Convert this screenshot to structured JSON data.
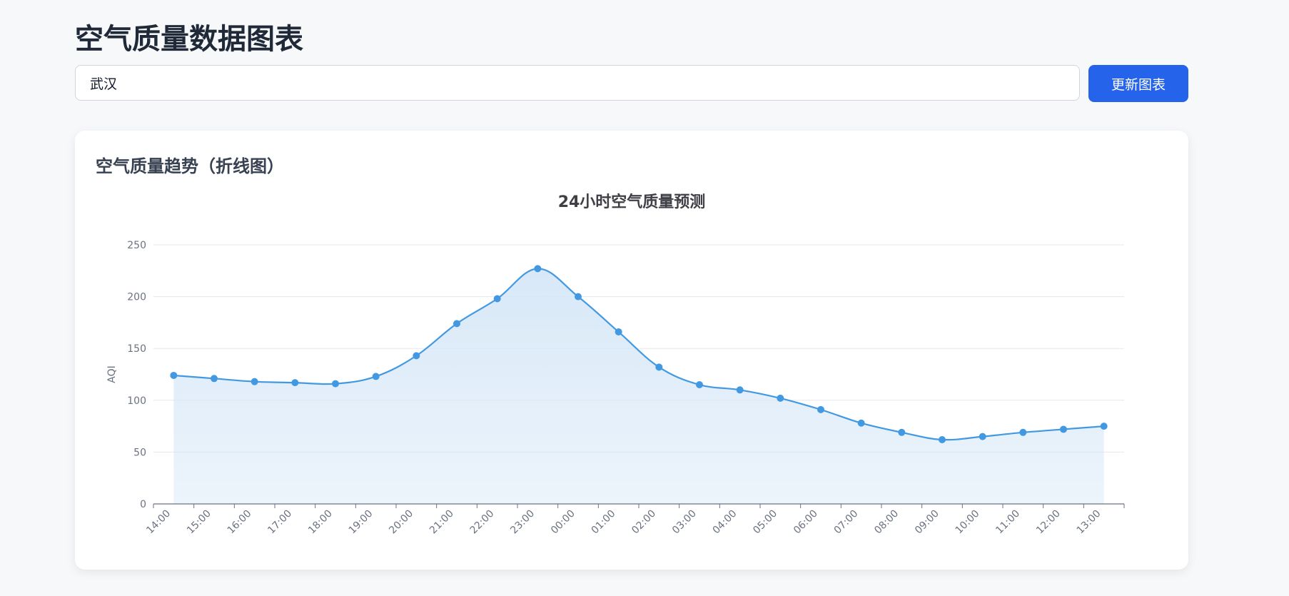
{
  "page": {
    "title": "空气质量数据图表"
  },
  "search": {
    "value": "武汉",
    "button_label": "更新图表"
  },
  "card": {
    "title": "空气质量趋势（折线图）"
  },
  "colors": {
    "accent": "#2563eb",
    "line": "#4299e1",
    "area": "#d6e7f7"
  },
  "chart_data": {
    "type": "line",
    "title": "24小时空气质量预测",
    "xlabel": "",
    "ylabel": "AQI",
    "ylim": [
      0,
      250
    ],
    "yticks": [
      0,
      50,
      100,
      150,
      200,
      250
    ],
    "grid": true,
    "area_fill": true,
    "smooth": true,
    "categories": [
      "14:00",
      "15:00",
      "16:00",
      "17:00",
      "18:00",
      "19:00",
      "20:00",
      "21:00",
      "22:00",
      "23:00",
      "00:00",
      "01:00",
      "02:00",
      "03:00",
      "04:00",
      "05:00",
      "06:00",
      "07:00",
      "08:00",
      "09:00",
      "10:00",
      "11:00",
      "12:00",
      "13:00"
    ],
    "series": [
      {
        "values": [
          124,
          121,
          118,
          117,
          116,
          123,
          143,
          174,
          198,
          227,
          200,
          166,
          132,
          115,
          110,
          102,
          91,
          78,
          69,
          62,
          65,
          69,
          72,
          75
        ]
      }
    ]
  }
}
